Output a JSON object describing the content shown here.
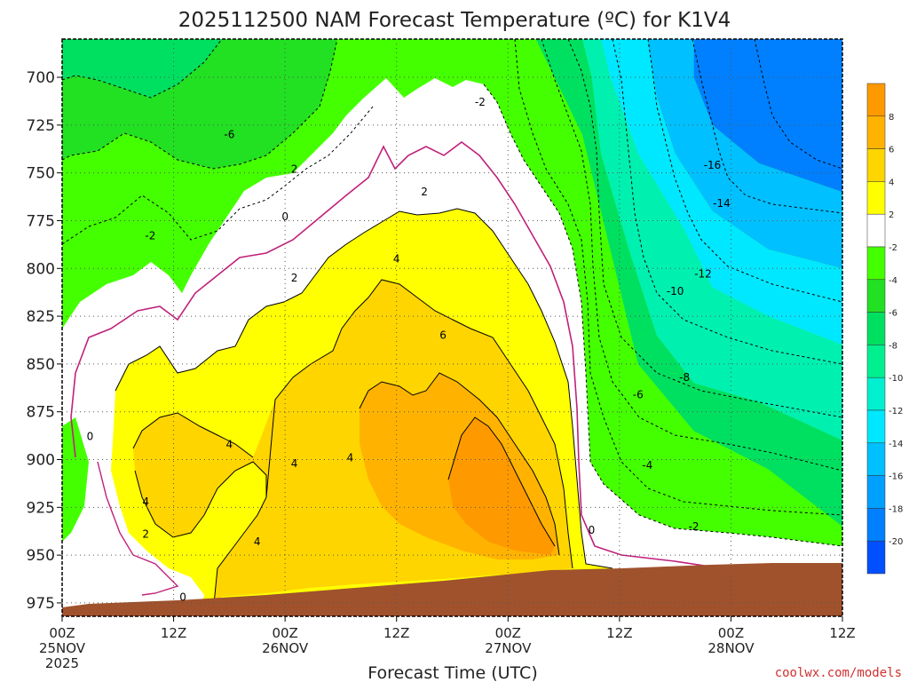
{
  "chart_data": {
    "type": "area",
    "title": "2025112500 NAM Forecast Temperature (ºC) for K1V4",
    "xlabel": "Forecast Time (UTC)",
    "ylabel": "",
    "x_ticks": [
      {
        "hour": 0,
        "label": "00Z",
        "date": "25NOV",
        "year": "2025"
      },
      {
        "hour": 12,
        "label": "12Z",
        "date": "",
        "year": ""
      },
      {
        "hour": 24,
        "label": "00Z",
        "date": "26NOV",
        "year": ""
      },
      {
        "hour": 36,
        "label": "12Z",
        "date": "",
        "year": ""
      },
      {
        "hour": 48,
        "label": "00Z",
        "date": "27NOV",
        "year": ""
      },
      {
        "hour": 60,
        "label": "12Z",
        "date": "",
        "year": ""
      },
      {
        "hour": 72,
        "label": "00Z",
        "date": "28NOV",
        "year": ""
      },
      {
        "hour": 84,
        "label": "12Z",
        "date": "",
        "year": ""
      }
    ],
    "xlim": [
      0,
      84
    ],
    "y_ticks": [
      700,
      725,
      750,
      775,
      800,
      825,
      850,
      875,
      900,
      925,
      950,
      975
    ],
    "ylim": [
      982,
      680
    ],
    "grid": true,
    "colorbar": {
      "levels": [
        10,
        8,
        6,
        4,
        2,
        -2,
        -4,
        -6,
        -8,
        -10,
        -12,
        -14,
        -16,
        -18,
        -20,
        -22
      ],
      "labels": [
        "8",
        "6",
        "4",
        "2",
        "-2",
        "-4",
        "-6",
        "-8",
        "-10",
        "-12",
        "-14",
        "-16",
        "-18",
        "-20"
      ],
      "colors": [
        "#ff9900",
        "#ffb300",
        "#ffd500",
        "#ffff00",
        "#ffffff",
        "#44ff00",
        "#22e022",
        "#00e060",
        "#00f090",
        "#00f0d0",
        "#00e8ff",
        "#00c0ff",
        "#00a0ff",
        "#0080ff",
        "#0050ff"
      ]
    },
    "bands": [
      {
        "level": "below -14",
        "color": "#0080ff",
        "points": [
          [
            68,
            680
          ],
          [
            84,
            680
          ],
          [
            84,
            760
          ],
          [
            75,
            745
          ],
          [
            70,
            725
          ],
          [
            68,
            700
          ]
        ]
      },
      {
        "level": "-14 to -12",
        "color": "#00c0ff",
        "points": [
          [
            63,
            680
          ],
          [
            68,
            680
          ],
          [
            68,
            700
          ],
          [
            70,
            725
          ],
          [
            75,
            745
          ],
          [
            84,
            760
          ],
          [
            84,
            800
          ],
          [
            76,
            790
          ],
          [
            70,
            770
          ],
          [
            66,
            740
          ],
          [
            64,
            710
          ]
        ]
      },
      {
        "level": "-12 to -8",
        "color": "#00e8ff",
        "points": [
          [
            58,
            680
          ],
          [
            63,
            680
          ],
          [
            64,
            710
          ],
          [
            66,
            740
          ],
          [
            70,
            770
          ],
          [
            76,
            790
          ],
          [
            84,
            800
          ],
          [
            84,
            840
          ],
          [
            76,
            825
          ],
          [
            70,
            810
          ],
          [
            67,
            780
          ],
          [
            62,
            740
          ],
          [
            59,
            700
          ]
        ]
      },
      {
        "level": "-8 to -6",
        "color": "#00f0b0",
        "points": [
          [
            56,
            680
          ],
          [
            58,
            680
          ],
          [
            59,
            700
          ],
          [
            62,
            740
          ],
          [
            67,
            780
          ],
          [
            70,
            810
          ],
          [
            76,
            825
          ],
          [
            84,
            840
          ],
          [
            84,
            890
          ],
          [
            75,
            870
          ],
          [
            68,
            860
          ],
          [
            64,
            835
          ],
          [
            61,
            790
          ],
          [
            58,
            740
          ],
          [
            57,
            700
          ]
        ]
      },
      {
        "level": "-6 to -4",
        "color": "#00e060",
        "points": [
          [
            51,
            680
          ],
          [
            56,
            680
          ],
          [
            57,
            700
          ],
          [
            58,
            740
          ],
          [
            61,
            790
          ],
          [
            64,
            835
          ],
          [
            68,
            860
          ],
          [
            75,
            870
          ],
          [
            84,
            890
          ],
          [
            84,
            935
          ],
          [
            76,
            905
          ],
          [
            68,
            885
          ],
          [
            62,
            850
          ],
          [
            59,
            790
          ],
          [
            56,
            730
          ],
          [
            53,
            700
          ]
        ]
      }
    ],
    "contour_labels": [
      {
        "hour": 3,
        "p": 888,
        "text": "0"
      },
      {
        "hour": 9,
        "p": 922,
        "text": "4"
      },
      {
        "hour": 9,
        "p": 939,
        "text": "2"
      },
      {
        "hour": 13,
        "p": 972,
        "text": "0"
      },
      {
        "hour": 18,
        "p": 730,
        "text": "-6"
      },
      {
        "hour": 9.5,
        "p": 783,
        "text": "-2"
      },
      {
        "hour": 18,
        "p": 892,
        "text": "4"
      },
      {
        "hour": 21,
        "p": 943,
        "text": "4"
      },
      {
        "hour": 25,
        "p": 748,
        "text": "2"
      },
      {
        "hour": 24,
        "p": 773,
        "text": "0"
      },
      {
        "hour": 25,
        "p": 805,
        "text": "2"
      },
      {
        "hour": 25,
        "p": 902,
        "text": "4"
      },
      {
        "hour": 31,
        "p": 899,
        "text": "4"
      },
      {
        "hour": 36,
        "p": 795,
        "text": "4"
      },
      {
        "hour": 39,
        "p": 760,
        "text": "2"
      },
      {
        "hour": 41,
        "p": 835,
        "text": "6"
      },
      {
        "hour": 45,
        "p": 713,
        "text": "-2"
      },
      {
        "hour": 57,
        "p": 937,
        "text": "0"
      },
      {
        "hour": 62,
        "p": 866,
        "text": "-6"
      },
      {
        "hour": 63,
        "p": 903,
        "text": "-4"
      },
      {
        "hour": 66,
        "p": 812,
        "text": "-10"
      },
      {
        "hour": 67,
        "p": 857,
        "text": "-8"
      },
      {
        "hour": 68,
        "p": 935,
        "text": "-2"
      },
      {
        "hour": 69,
        "p": 803,
        "text": "-12"
      },
      {
        "hour": 71,
        "p": 766,
        "text": "-14"
      },
      {
        "hour": 70,
        "p": 746,
        "text": "-16"
      }
    ]
  },
  "credit": "coolwx.com/models"
}
